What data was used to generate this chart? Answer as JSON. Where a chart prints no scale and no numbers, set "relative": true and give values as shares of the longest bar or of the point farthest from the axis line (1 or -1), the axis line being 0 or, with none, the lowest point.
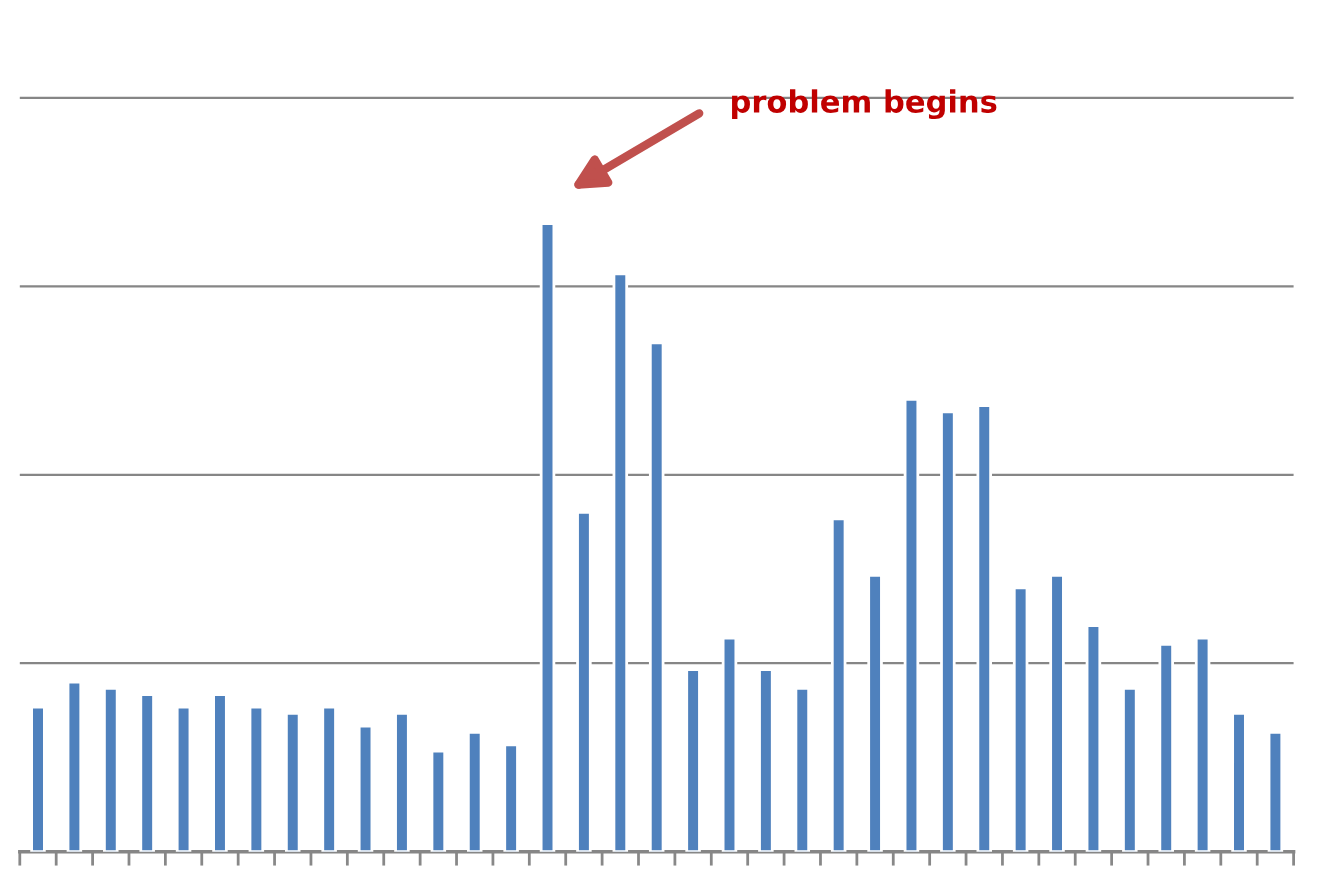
{
  "chart_data": {
    "type": "bar",
    "relative": true,
    "grid": "y",
    "color": "#4f81bd",
    "categories": [
      null,
      null,
      null,
      null,
      null,
      null,
      null,
      null,
      null,
      null,
      null,
      null,
      null,
      null,
      null,
      null,
      null,
      null,
      null,
      null,
      null,
      null,
      null,
      null,
      null,
      null,
      null,
      null,
      null,
      null,
      null,
      null,
      null,
      null,
      null
    ],
    "values": [
      0.23,
      0.27,
      0.26,
      0.25,
      0.23,
      0.25,
      0.23,
      0.22,
      0.23,
      0.2,
      0.22,
      0.16,
      0.19,
      0.17,
      1,
      0.54,
      0.92,
      0.81,
      0.29,
      0.34,
      0.29,
      0.26,
      0.53,
      0.44,
      0.72,
      0.7,
      0.71,
      0.42,
      0.44,
      0.36,
      0.26,
      0.33,
      0.34,
      0.22,
      0.19
    ],
    "annotations": [
      "problem begins"
    ]
  }
}
